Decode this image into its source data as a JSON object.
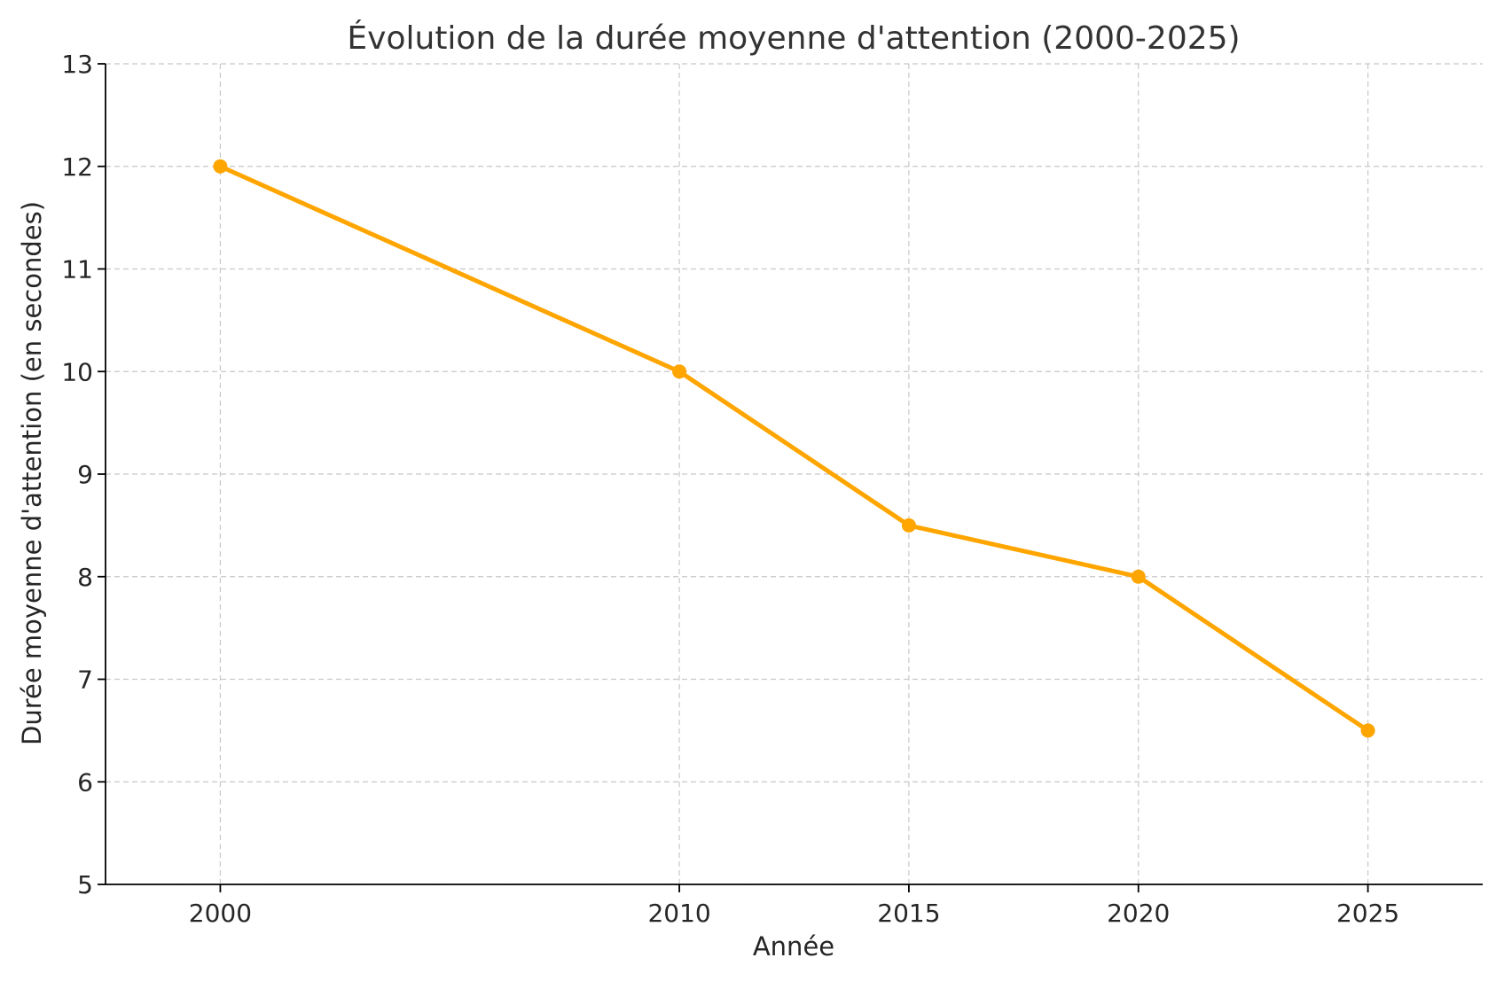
{
  "chart_data": {
    "type": "line",
    "title": "Évolution de la durée moyenne d'attention (2000-2025)",
    "xlabel": "Année",
    "ylabel": "Durée moyenne d'attention (en secondes)",
    "x": [
      2000,
      2010,
      2015,
      2020,
      2025
    ],
    "x_ticks": [
      "2000",
      "2010",
      "2015",
      "2020",
      "2025"
    ],
    "xlim": [
      1997.5,
      2027.5
    ],
    "ylim": [
      5,
      13
    ],
    "y_ticks": [
      "5",
      "6",
      "7",
      "8",
      "9",
      "10",
      "11",
      "12",
      "13"
    ],
    "series": [
      {
        "values": [
          12,
          10,
          8.5,
          8,
          6.5
        ],
        "color": "#FFA500",
        "marker": "circle"
      }
    ],
    "grid": true,
    "grid_style": "dashed",
    "legend": "none"
  }
}
